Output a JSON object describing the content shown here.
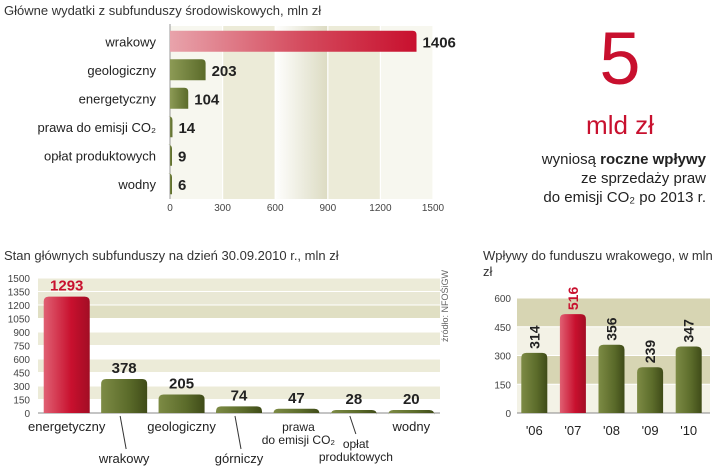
{
  "colors": {
    "red": "#c8102e",
    "olive": "#5b6b2a",
    "olive_dark": "#3f4b18",
    "band": "#d7d5b3",
    "band_light": "#ecebd8"
  },
  "callout": {
    "number": "5",
    "unit": "mld zł",
    "line1_pre": "wyniosą ",
    "line1_bold": "roczne wpływy",
    "line2": "ze sprzedaży praw",
    "line3": "do emisji CO₂ po 2013 r."
  },
  "source": "źródło: NFOŚiGW",
  "chart_data": [
    {
      "type": "bar",
      "orientation": "horizontal",
      "title": "Główne wydatki z subfunduszy środowiskowych, mln zł",
      "categories": [
        "wrakowy",
        "geologiczny",
        "energetyczny",
        "prawa do emisji CO₂",
        "opłat produktowych",
        "wodny"
      ],
      "values": [
        1406,
        203,
        104,
        14,
        9,
        6
      ],
      "value_labels": [
        "1406",
        "203",
        "104",
        "14",
        "9",
        "6"
      ],
      "highlight": [
        0
      ],
      "xlim": [
        0,
        1500
      ],
      "xticks": [
        "0",
        "300",
        "600",
        "900",
        "1200",
        "1500"
      ]
    },
    {
      "type": "bar",
      "title": "Stan głównych subfunduszy na dzień 30.09.2010 r., mln zł",
      "categories": [
        "energetyczny",
        "wrakowy",
        "geologiczny",
        "górniczy",
        "prawa do emisji CO₂",
        "opłat produktowych",
        "wodny"
      ],
      "values": [
        1293,
        378,
        205,
        74,
        47,
        28,
        20
      ],
      "value_labels": [
        "1293",
        "378",
        "205",
        "74",
        "47",
        "28",
        "20"
      ],
      "highlight": [
        0
      ],
      "ylim": [
        0,
        1500
      ],
      "yticks": [
        "0",
        "150",
        "300",
        "450",
        "600",
        "750",
        "900",
        "1050",
        "1200",
        "1350",
        "1500"
      ]
    },
    {
      "type": "bar",
      "title": "Wpływy do funduszu wrakowego, w mln zł",
      "categories": [
        "'06",
        "'07",
        "'08",
        "'09",
        "'10"
      ],
      "values": [
        314,
        516,
        356,
        239,
        347
      ],
      "value_labels": [
        "314",
        "516",
        "356",
        "239",
        "347"
      ],
      "highlight": [
        1
      ],
      "ylim": [
        0,
        600
      ],
      "yticks": [
        "0",
        "150",
        "300",
        "450",
        "600"
      ]
    }
  ]
}
